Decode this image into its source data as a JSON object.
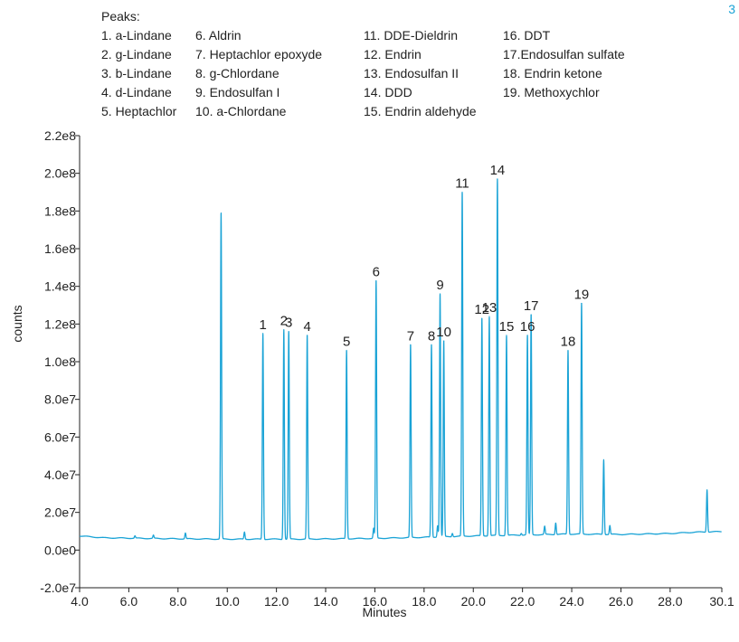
{
  "corner_label": "3",
  "legend": {
    "heading": "Peaks:",
    "columns": [
      [
        "1. a-Lindane",
        "2. g-Lindane",
        "3. b-Lindane",
        "4. d-Lindane",
        "5. Heptachlor"
      ],
      [
        "6. Aldrin",
        "7. Heptachlor epoxyde",
        "8. g-Chlordane",
        "9. Endosulfan I",
        "10. a-Chlordane"
      ],
      [
        "11. DDE-Dieldrin",
        "12. Endrin",
        "13. Endosulfan II",
        "14. DDD",
        "15. Endrin aldehyde"
      ],
      [
        "16. DDT",
        "17.Endosulfan sulfate",
        "18. Endrin ketone",
        "19. Methoxychlor"
      ]
    ]
  },
  "colors": {
    "trace": "#1aa3d6",
    "axis": "#222222"
  },
  "chart_data": {
    "type": "line",
    "xlabel": "Minutes",
    "ylabel": "counts",
    "xlim": [
      4.0,
      30.1
    ],
    "ylim": [
      -20000000.0,
      220000000.0
    ],
    "grid": false,
    "xticks": [
      4.0,
      6.0,
      8.0,
      10.0,
      12.0,
      14.0,
      16.0,
      18.0,
      20.0,
      22.0,
      24.0,
      26.0,
      28.0,
      30.1
    ],
    "xtick_labels": [
      "4.0",
      "6.0",
      "8.0",
      "10.0",
      "12.0",
      "14.0",
      "16.0",
      "18.0",
      "20.0",
      "22.0",
      "24.0",
      "26.0",
      "28.0",
      "30.1"
    ],
    "yticks": [
      -20000000.0,
      0,
      20000000.0,
      40000000.0,
      60000000.0,
      80000000.0,
      100000000.0,
      120000000.0,
      140000000.0,
      160000000.0,
      180000000.0,
      200000000.0,
      220000000.0
    ],
    "ytick_labels": [
      "-2.0e7",
      "0.0e0",
      "2.0e7",
      "4.0e7",
      "6.0e7",
      "8.0e7",
      "1.0e8",
      "1.2e8",
      "1.4e8",
      "1.6e8",
      "1.8e8",
      "2.0e8",
      "2.2e8"
    ],
    "baseline": [
      [
        4.0,
        7500000.0
      ],
      [
        5.0,
        6500000.0
      ],
      [
        8.0,
        6000000.0
      ],
      [
        10.0,
        5800000.0
      ],
      [
        13.0,
        5800000.0
      ],
      [
        16.0,
        6200000.0
      ],
      [
        18.0,
        6800000.0
      ],
      [
        20.0,
        7500000.0
      ],
      [
        22.0,
        8000000.0
      ],
      [
        24.0,
        8500000.0
      ],
      [
        26.0,
        8300000.0
      ],
      [
        28.0,
        8800000.0
      ],
      [
        29.0,
        9500000.0
      ],
      [
        30.1,
        9800000.0
      ]
    ],
    "peaks": [
      {
        "label": "",
        "x": 9.75,
        "y": 179000000.0
      },
      {
        "label": "1",
        "x": 11.45,
        "y": 115000000.0
      },
      {
        "label": "2",
        "x": 12.3,
        "y": 117000000.0
      },
      {
        "label": "3",
        "x": 12.5,
        "y": 116000000.0
      },
      {
        "label": "4",
        "x": 13.25,
        "y": 114000000.0
      },
      {
        "label": "5",
        "x": 14.85,
        "y": 106000000.0
      },
      {
        "label": "6",
        "x": 16.05,
        "y": 143000000.0
      },
      {
        "label": "7",
        "x": 17.45,
        "y": 109000000.0
      },
      {
        "label": "8",
        "x": 18.3,
        "y": 109000000.0
      },
      {
        "label": "9",
        "x": 18.65,
        "y": 136000000.0
      },
      {
        "label": "10",
        "x": 18.8,
        "y": 111000000.0
      },
      {
        "label": "11",
        "x": 19.55,
        "y": 190000000.0
      },
      {
        "label": "12",
        "x": 20.35,
        "y": 123000000.0
      },
      {
        "label": "13",
        "x": 20.65,
        "y": 124000000.0
      },
      {
        "label": "14",
        "x": 20.98,
        "y": 197000000.0
      },
      {
        "label": "15",
        "x": 21.35,
        "y": 114000000.0
      },
      {
        "label": "16",
        "x": 22.2,
        "y": 114000000.0
      },
      {
        "label": "17",
        "x": 22.35,
        "y": 125000000.0
      },
      {
        "label": "18",
        "x": 23.85,
        "y": 106000000.0
      },
      {
        "label": "19",
        "x": 24.4,
        "y": 131000000.0
      },
      {
        "label": "",
        "x": 25.3,
        "y": 48000000.0
      },
      {
        "label": "",
        "x": 29.5,
        "y": 32000000.0
      }
    ],
    "minor_peaks": [
      {
        "x": 6.25,
        "y": 7500000.0
      },
      {
        "x": 7.0,
        "y": 7800000.0
      },
      {
        "x": 8.3,
        "y": 9000000.0
      },
      {
        "x": 10.7,
        "y": 9500000.0
      },
      {
        "x": 15.95,
        "y": 11500000.0
      },
      {
        "x": 18.55,
        "y": 13000000.0
      },
      {
        "x": 19.15,
        "y": 9000000.0
      },
      {
        "x": 21.95,
        "y": 9000000.0
      },
      {
        "x": 22.9,
        "y": 12500000.0
      },
      {
        "x": 23.35,
        "y": 14500000.0
      },
      {
        "x": 25.55,
        "y": 13000000.0
      }
    ]
  }
}
